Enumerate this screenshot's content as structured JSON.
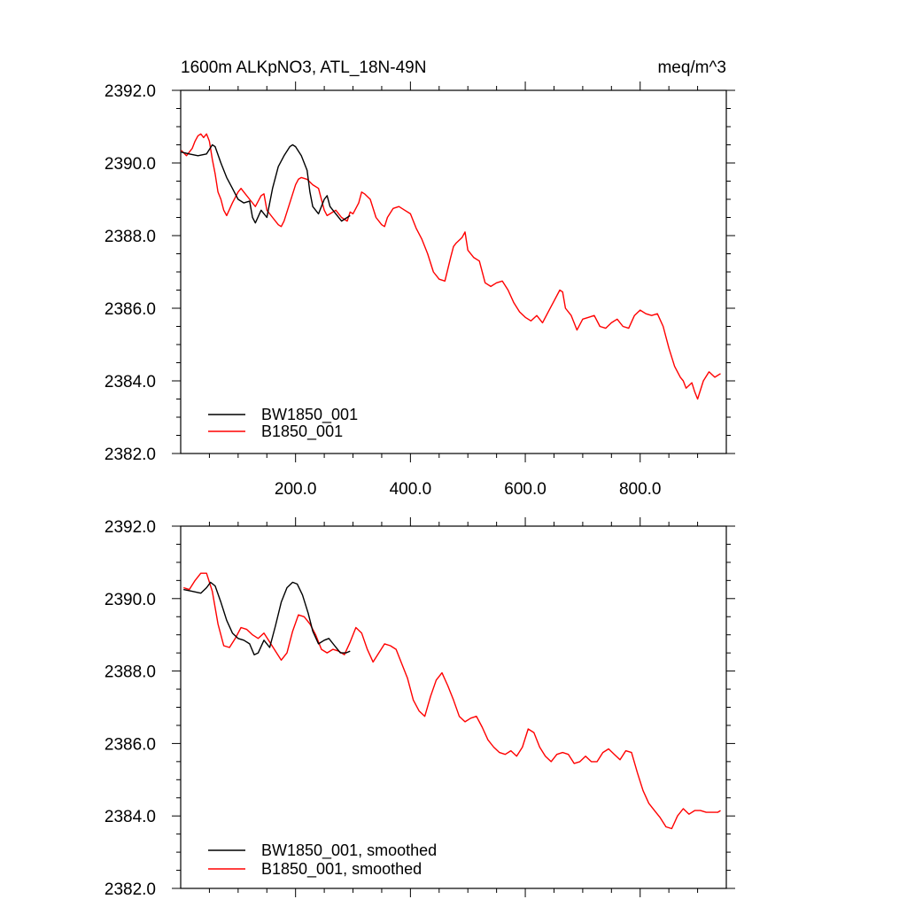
{
  "chart_data": [
    {
      "type": "line",
      "title_left": "1600m ALKpNO3, ATL_18N-49N",
      "title_right": "meq/m^3",
      "xlabel": "",
      "ylabel": "",
      "xlim": [
        0,
        950
      ],
      "ylim": [
        2382,
        2392
      ],
      "xticks": [
        200,
        400,
        600,
        800
      ],
      "xtick_labels": [
        "200.0",
        "400.0",
        "600.0",
        "800.0"
      ],
      "yticks": [
        2382,
        2384,
        2386,
        2388,
        2390,
        2392
      ],
      "ytick_labels": [
        "2382.0",
        "2384.0",
        "2386.0",
        "2388.0",
        "2390.0",
        "2392.0"
      ],
      "legend": "bottom-left",
      "series": [
        {
          "name": "BW1850_001",
          "color": "#000000",
          "x": [
            1,
            15,
            30,
            45,
            55,
            60,
            70,
            80,
            90,
            100,
            110,
            120,
            125,
            130,
            140,
            150,
            160,
            170,
            180,
            190,
            195,
            200,
            210,
            220,
            225,
            230,
            240,
            250,
            255,
            260,
            270,
            280,
            290,
            295
          ],
          "y": [
            2390.3,
            2390.25,
            2390.2,
            2390.25,
            2390.5,
            2390.45,
            2390.0,
            2389.6,
            2389.3,
            2389.0,
            2388.9,
            2388.95,
            2388.5,
            2388.35,
            2388.7,
            2388.5,
            2389.3,
            2389.9,
            2390.2,
            2390.45,
            2390.5,
            2390.45,
            2390.2,
            2389.8,
            2389.2,
            2388.8,
            2388.6,
            2389.0,
            2389.1,
            2388.8,
            2388.6,
            2388.4,
            2388.5,
            2388.55
          ]
        },
        {
          "name": "B1850_001",
          "color": "#ff0000",
          "x": [
            1,
            10,
            20,
            25,
            30,
            35,
            40,
            45,
            50,
            55,
            60,
            65,
            70,
            75,
            80,
            90,
            100,
            105,
            110,
            120,
            130,
            140,
            145,
            150,
            160,
            170,
            175,
            180,
            190,
            200,
            205,
            210,
            220,
            230,
            240,
            250,
            255,
            260,
            270,
            280,
            290,
            295,
            300,
            310,
            315,
            320,
            330,
            340,
            350,
            355,
            360,
            370,
            380,
            390,
            400,
            410,
            420,
            430,
            440,
            450,
            460,
            470,
            475,
            480,
            490,
            495,
            500,
            510,
            520,
            530,
            540,
            550,
            560,
            570,
            580,
            590,
            600,
            610,
            620,
            630,
            640,
            650,
            660,
            665,
            670,
            680,
            690,
            700,
            710,
            720,
            730,
            740,
            750,
            760,
            770,
            780,
            790,
            800,
            810,
            820,
            830,
            840,
            850,
            860,
            870,
            875,
            880,
            890,
            895,
            900,
            910,
            920,
            930,
            940
          ],
          "y": [
            2390.35,
            2390.2,
            2390.4,
            2390.6,
            2390.75,
            2390.8,
            2390.7,
            2390.8,
            2390.6,
            2390.1,
            2389.7,
            2389.2,
            2389.0,
            2388.7,
            2388.55,
            2388.9,
            2389.2,
            2389.3,
            2389.2,
            2389.0,
            2388.8,
            2389.1,
            2389.15,
            2388.7,
            2388.5,
            2388.3,
            2388.25,
            2388.4,
            2388.9,
            2389.4,
            2389.55,
            2389.6,
            2389.55,
            2389.4,
            2389.3,
            2388.7,
            2388.55,
            2388.6,
            2388.7,
            2388.5,
            2388.4,
            2388.65,
            2388.6,
            2388.9,
            2389.2,
            2389.15,
            2389.0,
            2388.5,
            2388.3,
            2388.25,
            2388.5,
            2388.75,
            2388.8,
            2388.7,
            2388.6,
            2388.2,
            2387.9,
            2387.5,
            2387.0,
            2386.8,
            2386.75,
            2387.4,
            2387.7,
            2387.8,
            2387.95,
            2388.1,
            2387.6,
            2387.4,
            2387.3,
            2386.7,
            2386.6,
            2386.7,
            2386.75,
            2386.5,
            2386.15,
            2385.9,
            2385.75,
            2385.65,
            2385.8,
            2385.6,
            2385.9,
            2386.2,
            2386.5,
            2386.45,
            2386.0,
            2385.8,
            2385.4,
            2385.7,
            2385.75,
            2385.8,
            2385.5,
            2385.45,
            2385.6,
            2385.7,
            2385.5,
            2385.45,
            2385.8,
            2385.95,
            2385.85,
            2385.8,
            2385.85,
            2385.5,
            2384.9,
            2384.4,
            2384.1,
            2384.0,
            2383.8,
            2383.95,
            2383.7,
            2383.5,
            2384.0,
            2384.25,
            2384.1,
            2384.2
          ]
        }
      ]
    },
    {
      "type": "line",
      "title_left": "",
      "title_right": "",
      "xlabel": "",
      "ylabel": "",
      "xlim": [
        0,
        950
      ],
      "ylim": [
        2382,
        2392
      ],
      "xticks": [
        200,
        400,
        600,
        800
      ],
      "xtick_labels": [],
      "yticks": [
        2382,
        2384,
        2386,
        2388,
        2390,
        2392
      ],
      "ytick_labels": [
        "2382.0",
        "2384.0",
        "2386.0",
        "2388.0",
        "2390.0",
        "2392.0"
      ],
      "legend": "bottom-left",
      "series": [
        {
          "name": "BW1850_001, smoothed",
          "color": "#000000",
          "x": [
            5,
            20,
            35,
            45,
            52,
            60,
            70,
            80,
            90,
            100,
            110,
            120,
            128,
            135,
            145,
            155,
            165,
            175,
            185,
            195,
            203,
            212,
            222,
            230,
            240,
            250,
            258,
            268,
            278,
            288,
            295
          ],
          "y": [
            2390.25,
            2390.2,
            2390.15,
            2390.3,
            2390.45,
            2390.35,
            2389.9,
            2389.4,
            2389.05,
            2388.9,
            2388.85,
            2388.75,
            2388.45,
            2388.5,
            2388.85,
            2388.65,
            2389.25,
            2389.9,
            2390.3,
            2390.45,
            2390.4,
            2390.1,
            2389.6,
            2389.1,
            2388.75,
            2388.85,
            2388.9,
            2388.7,
            2388.5,
            2388.5,
            2388.55
          ]
        },
        {
          "name": "B1850_001, smoothed",
          "color": "#ff0000",
          "x": [
            5,
            15,
            25,
            35,
            45,
            55,
            65,
            75,
            85,
            95,
            105,
            115,
            125,
            135,
            145,
            155,
            165,
            175,
            185,
            195,
            205,
            215,
            225,
            235,
            245,
            255,
            265,
            275,
            285,
            295,
            305,
            315,
            325,
            335,
            345,
            355,
            365,
            375,
            385,
            395,
            405,
            415,
            425,
            435,
            445,
            455,
            465,
            475,
            485,
            495,
            505,
            515,
            525,
            535,
            545,
            555,
            565,
            575,
            585,
            595,
            605,
            615,
            625,
            635,
            645,
            655,
            665,
            675,
            685,
            695,
            705,
            715,
            725,
            735,
            745,
            755,
            765,
            775,
            785,
            795,
            805,
            815,
            825,
            835,
            845,
            855,
            865,
            875,
            885,
            895,
            905,
            915,
            925,
            935,
            940
          ],
          "y": [
            2390.3,
            2390.25,
            2390.5,
            2390.7,
            2390.7,
            2390.2,
            2389.3,
            2388.7,
            2388.65,
            2388.9,
            2389.2,
            2389.15,
            2389.0,
            2388.9,
            2389.05,
            2388.8,
            2388.55,
            2388.3,
            2388.5,
            2389.1,
            2389.55,
            2389.5,
            2389.3,
            2389.0,
            2388.6,
            2388.5,
            2388.6,
            2388.55,
            2388.45,
            2388.8,
            2389.2,
            2389.05,
            2388.6,
            2388.25,
            2388.5,
            2388.75,
            2388.7,
            2388.6,
            2388.2,
            2387.8,
            2387.2,
            2386.9,
            2386.75,
            2387.3,
            2387.75,
            2387.95,
            2387.6,
            2387.2,
            2386.75,
            2386.6,
            2386.7,
            2386.75,
            2386.45,
            2386.1,
            2385.9,
            2385.75,
            2385.7,
            2385.8,
            2385.65,
            2385.9,
            2386.4,
            2386.3,
            2385.9,
            2385.65,
            2385.5,
            2385.7,
            2385.75,
            2385.7,
            2385.45,
            2385.5,
            2385.65,
            2385.5,
            2385.5,
            2385.75,
            2385.85,
            2385.7,
            2385.55,
            2385.8,
            2385.75,
            2385.2,
            2384.7,
            2384.35,
            2384.15,
            2383.95,
            2383.7,
            2383.65,
            2384.0,
            2384.2,
            2384.05,
            2384.15,
            2384.15,
            2384.1,
            2384.1,
            2384.1,
            2384.15
          ]
        }
      ]
    }
  ]
}
